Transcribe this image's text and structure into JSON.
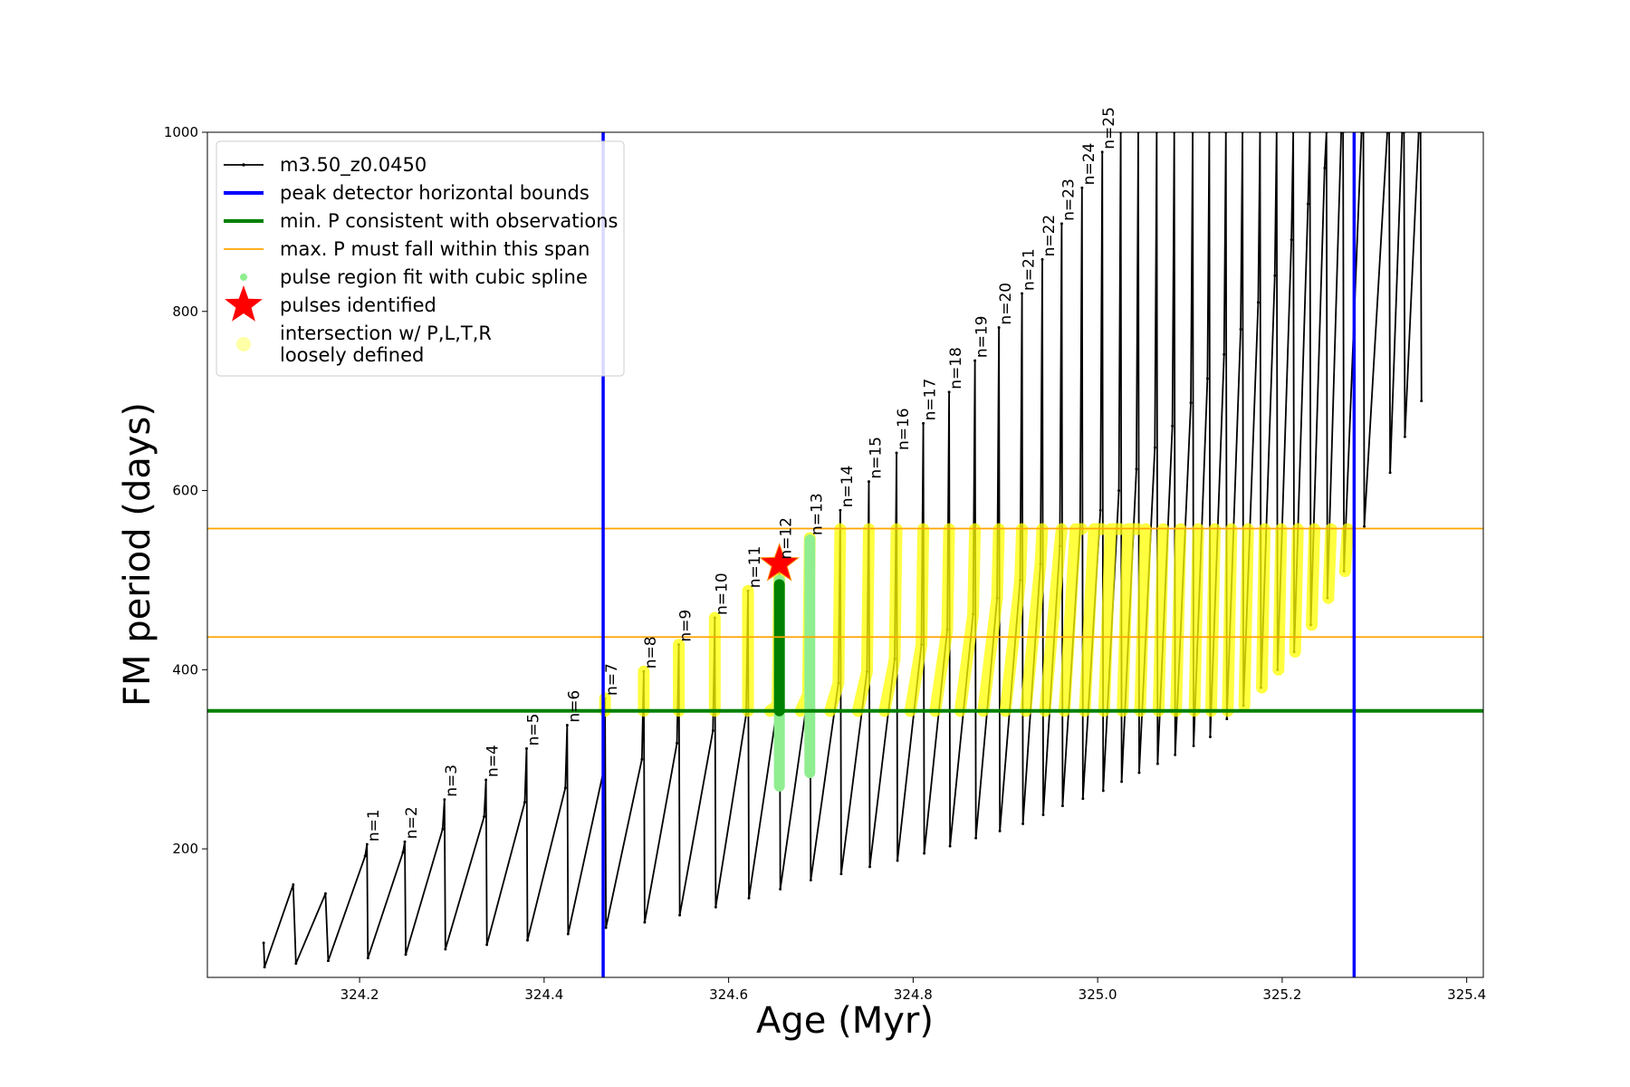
{
  "chart_data": {
    "type": "line",
    "xlabel": "Age (Myr)",
    "ylabel": "FM period (days)",
    "xlim": [
      324.035,
      325.418
    ],
    "ylim": [
      56.5,
      1000
    ],
    "xticks": [
      324.2,
      324.4,
      324.6,
      324.8,
      {
        "value": 325,
        "label": "325.0"
      },
      325.2,
      325.4
    ],
    "yticks": [
      200,
      400,
      600,
      800,
      1000
    ],
    "legend": "upper left",
    "series": [
      {
        "name": "m3.50_z0.0450",
        "color": "#000000",
        "style": "line-dot",
        "x": [
          324.096,
          324.097,
          324.128,
          324.131,
          324.163,
          324.166,
          324.206,
          324.208,
          324.209,
          324.247,
          324.249,
          324.25,
          324.29,
          324.292,
          324.293,
          324.335,
          324.337,
          324.338,
          324.379,
          324.381,
          324.382,
          324.423,
          324.425,
          324.426,
          324.464,
          324.466,
          324.467,
          324.506,
          324.508,
          324.509,
          324.544,
          324.546,
          324.547,
          324.583,
          324.585,
          324.586,
          324.619,
          324.621,
          324.622,
          324.653,
          324.655,
          324.656,
          324.686,
          324.688,
          324.689,
          324.719,
          324.721,
          324.722,
          324.75,
          324.752,
          324.753,
          324.78,
          324.782,
          324.783,
          324.809,
          324.811,
          324.812,
          324.837,
          324.839,
          324.84,
          324.865,
          324.867,
          324.868,
          324.891,
          324.893,
          324.894,
          324.916,
          324.918,
          324.919,
          324.938,
          324.94,
          324.941,
          324.959,
          324.961,
          324.962,
          324.981,
          324.983,
          324.984,
          325.003,
          325.005,
          325.006,
          325.023,
          325.025,
          325.026,
          325.042,
          325.044,
          325.045,
          325.062,
          325.064,
          325.065,
          325.081,
          325.083,
          325.084,
          325.101,
          325.103,
          325.104,
          325.119,
          325.121,
          325.122,
          325.137,
          325.139,
          325.14,
          325.155,
          325.157,
          325.158,
          325.174,
          325.176,
          325.177,
          325.192,
          325.194,
          325.195,
          325.21,
          325.212,
          325.213,
          325.228,
          325.23,
          325.231,
          325.246,
          325.248,
          325.249,
          325.264,
          325.266,
          325.267,
          325.286,
          325.288,
          325.289,
          325.314,
          325.316,
          325.317,
          325.33,
          325.332,
          325.333,
          325.348,
          325.35,
          325.351
        ],
        "values": [
          95,
          68,
          160,
          72,
          150,
          75,
          192,
          205,
          78,
          196,
          208,
          82,
          222,
          255,
          88,
          236,
          277,
          93,
          252,
          312,
          98,
          268,
          338,
          105,
          285,
          368,
          112,
          300,
          398,
          118,
          318,
          428,
          126,
          332,
          458,
          135,
          350,
          488,
          145,
          360,
          520,
          155,
          372,
          547,
          165,
          385,
          578,
          172,
          398,
          610,
          180,
          412,
          642,
          187,
          428,
          675,
          195,
          445,
          710,
          203,
          462,
          745,
          212,
          480,
          782,
          220,
          500,
          820,
          228,
          518,
          858,
          238,
          538,
          898,
          248,
          558,
          938,
          256,
          578,
          978,
          265,
          600,
          1000,
          275,
          624,
          1000,
          285,
          648,
          1000,
          295,
          672,
          1000,
          305,
          698,
          1000,
          315,
          725,
          1000,
          325,
          752,
          1000,
          345,
          780,
          1000,
          360,
          810,
          1000,
          380,
          840,
          1000,
          400,
          880,
          1000,
          420,
          920,
          1000,
          450,
          960,
          1000,
          480,
          1000,
          1000,
          510,
          1000,
          1000,
          560,
          1000,
          1000,
          620,
          1000,
          1000,
          660,
          1000,
          1000,
          700
        ]
      },
      {
        "name": "peak detector horizontal bounds",
        "color": "#0000ff",
        "style": "vline",
        "x": [
          324.464,
          325.278
        ]
      },
      {
        "name": "min. P consistent with observations",
        "color": "#008000",
        "style": "hline",
        "values": [
          354
        ]
      },
      {
        "name": "max. P must fall within this span",
        "color": "#ffa500",
        "style": "hline",
        "values": [
          436.5,
          557.6
        ]
      },
      {
        "name": "pulse region fit with cubic spline",
        "color": "#90ee90",
        "style": "thick",
        "x": [
          324.655,
          324.655,
          null,
          324.688,
          324.688
        ],
        "values": [
          270,
          500,
          null,
          285,
          545
        ]
      },
      {
        "name": "pulses identified",
        "color": "#ff0000",
        "style": "star",
        "x": [
          324.655
        ],
        "values": [
          518
        ]
      },
      {
        "name": "intersection w/ P,L,T,R\nloosely defined",
        "color": "#ffff00",
        "style": "thick-alpha",
        "x": [
          324.466,
          324.466,
          null,
          324.508,
          324.508,
          null,
          324.546,
          324.546,
          null,
          324.585,
          324.585,
          null,
          324.621,
          324.621,
          null,
          324.645,
          324.653,
          324.655,
          null,
          324.678,
          324.686,
          324.688,
          null,
          324.71,
          324.719,
          324.721,
          null,
          324.74,
          324.75,
          324.752,
          null,
          324.769,
          324.78,
          324.782,
          null,
          324.797,
          324.809,
          324.811,
          null,
          324.824,
          324.837,
          324.839,
          null,
          324.851,
          324.865,
          324.867,
          null,
          324.876,
          324.891,
          324.893,
          null,
          324.9,
          324.916,
          324.918,
          null,
          324.922,
          324.938,
          324.94,
          null,
          324.943,
          324.959,
          324.961,
          null,
          324.964,
          324.976,
          324.983,
          null,
          324.986,
          324.996,
          325.005,
          null,
          325.007,
          325.014,
          325.025,
          null,
          325.027,
          325.033,
          325.044,
          null,
          325.046,
          325.052,
          null,
          325.066,
          325.071,
          null,
          325.085,
          325.09,
          null,
          325.105,
          325.109,
          null,
          325.123,
          325.127,
          null,
          325.141,
          325.145,
          null,
          325.159,
          325.163,
          null,
          325.178,
          325.181,
          null,
          325.196,
          325.199,
          null,
          325.214,
          325.217,
          null,
          325.232,
          325.235,
          null,
          325.25,
          325.253,
          null,
          325.268,
          325.271
        ],
        "values": [
          354,
          368,
          null,
          354,
          398,
          null,
          354,
          428,
          null,
          354,
          458,
          null,
          354,
          488,
          null,
          354,
          360,
          520,
          null,
          354,
          372,
          547,
          null,
          354,
          385,
          557,
          null,
          354,
          398,
          557,
          null,
          354,
          412,
          557,
          null,
          354,
          428,
          557,
          null,
          354,
          445,
          557,
          null,
          354,
          462,
          557,
          null,
          354,
          480,
          557,
          null,
          354,
          500,
          557,
          null,
          354,
          518,
          557,
          null,
          354,
          538,
          557,
          null,
          354,
          557,
          557,
          null,
          354,
          557,
          557,
          null,
          354,
          557,
          557,
          null,
          354,
          557,
          557,
          null,
          354,
          557,
          null,
          354,
          557,
          null,
          354,
          557,
          null,
          354,
          557,
          null,
          354,
          557,
          null,
          354,
          557,
          null,
          360,
          557,
          null,
          380,
          557,
          null,
          400,
          557,
          null,
          420,
          557,
          null,
          450,
          557,
          null,
          480,
          557,
          null,
          510,
          557
        ]
      },
      {
        "color": "#008000",
        "style": "thick",
        "x": [
          324.655,
          324.655
        ],
        "values": [
          354,
          495
        ]
      }
    ],
    "annotations": [
      {
        "text": "n=1",
        "x": 324.208,
        "y": 205
      },
      {
        "text": "n=2",
        "x": 324.249,
        "y": 208
      },
      {
        "text": "n=3",
        "x": 324.292,
        "y": 255
      },
      {
        "text": "n=4",
        "x": 324.337,
        "y": 277
      },
      {
        "text": "n=5",
        "x": 324.381,
        "y": 312
      },
      {
        "text": "n=6",
        "x": 324.425,
        "y": 338
      },
      {
        "text": "n=7",
        "x": 324.466,
        "y": 368
      },
      {
        "text": "n=8",
        "x": 324.508,
        "y": 398
      },
      {
        "text": "n=9",
        "x": 324.546,
        "y": 428
      },
      {
        "text": "n=10",
        "x": 324.585,
        "y": 458
      },
      {
        "text": "n=11",
        "x": 324.621,
        "y": 488
      },
      {
        "text": "n=12",
        "x": 324.655,
        "y": 520
      },
      {
        "text": "n=13",
        "x": 324.688,
        "y": 547
      },
      {
        "text": "n=14",
        "x": 324.721,
        "y": 578
      },
      {
        "text": "n=15",
        "x": 324.752,
        "y": 610
      },
      {
        "text": "n=16",
        "x": 324.782,
        "y": 642
      },
      {
        "text": "n=17",
        "x": 324.811,
        "y": 675
      },
      {
        "text": "n=18",
        "x": 324.839,
        "y": 710
      },
      {
        "text": "n=19",
        "x": 324.867,
        "y": 745
      },
      {
        "text": "n=20",
        "x": 324.893,
        "y": 782
      },
      {
        "text": "n=21",
        "x": 324.918,
        "y": 820
      },
      {
        "text": "n=22",
        "x": 324.94,
        "y": 858
      },
      {
        "text": "n=23",
        "x": 324.961,
        "y": 898
      },
      {
        "text": "n=24",
        "x": 324.983,
        "y": 938
      },
      {
        "text": "n=25",
        "x": 325.005,
        "y": 978
      }
    ]
  }
}
